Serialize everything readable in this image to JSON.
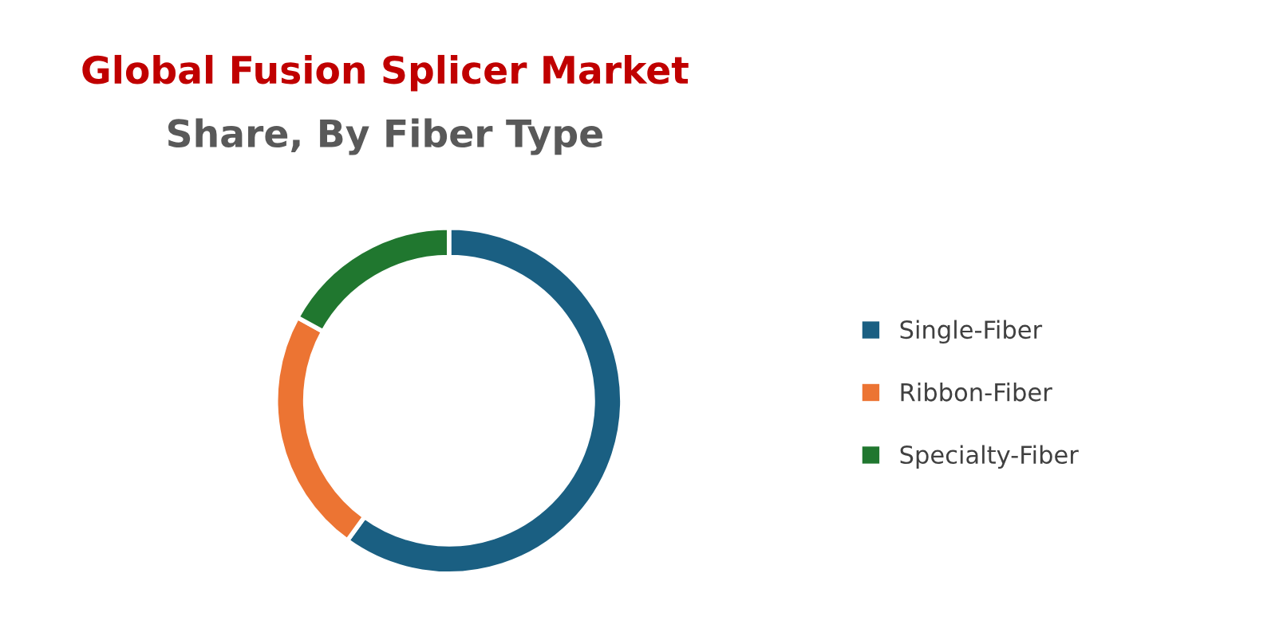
{
  "chart_data": {
    "type": "donut",
    "title": "Global Fusion Splicer Market",
    "subtitle": "Share, By Fiber Type",
    "categories": [
      "Single-Fiber",
      "Ribbon-Fiber",
      "Specialty-Fiber"
    ],
    "values": [
      60,
      23,
      17
    ],
    "colors": [
      "#1a5f82",
      "#ec7433",
      "#20772f"
    ],
    "legend": "right"
  }
}
